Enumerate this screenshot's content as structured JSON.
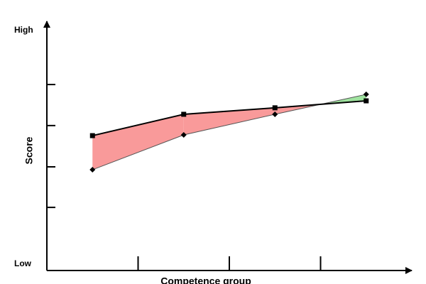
{
  "chart_data": {
    "type": "line",
    "x_label": "Competence group",
    "y_label": "Score",
    "categories": [
      null,
      null,
      null,
      null
    ],
    "series": [
      {
        "color": "#000000",
        "marker": "square",
        "values": [
          56.2,
          65.1,
          67.8,
          70.7
        ]
      },
      {
        "color": "#555555",
        "marker": "diamond",
        "values": [
          42.0,
          56.5,
          65.1,
          73.4
        ]
      }
    ],
    "fill_between": {
      "below_color": "#f99a9a",
      "above_color": "#9fe39f"
    },
    "ylim": [
      0,
      100
    ],
    "yticks": [
      {
        "value": 0,
        "label": "Low"
      },
      {
        "value": 100,
        "label": "High"
      }
    ],
    "ytick_marks": [
      26.3,
      43.2,
      60.4,
      77.5
    ]
  }
}
